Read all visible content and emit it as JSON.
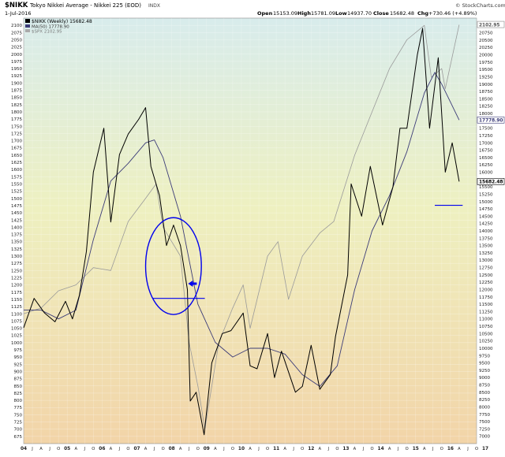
{
  "header": {
    "ticker": "$NIKK",
    "name": "Tokyo Nikkei Average - Nikkei 225 (EOD)",
    "exchange": "INDX",
    "date": "1-Jul-2016",
    "open_label": "Open",
    "open_value": "15153.09",
    "high_label": "High",
    "high_value": "15781.09",
    "low_label": "Low",
    "low_value": "14937.70",
    "close_label": "Close",
    "close_value": "15682.48",
    "chg_label": "Chg",
    "chg_value": "+730.46 (+4.89%)",
    "brand": "© StockCharts.com"
  },
  "legend": {
    "main": "$NIKK (Weekly) 15682.48",
    "ma": "MA(50) 17778.90",
    "spx": "$SPX 2102.95"
  },
  "colors": {
    "price": "#000000",
    "ma": "#3c3c78",
    "spx": "#9a9a9a",
    "annotation": "#0000ee",
    "bg_top": "#d8ecec",
    "bg_mid": "#eef0c0",
    "bg_bottom": "#f2d4a8"
  },
  "chart_data": {
    "type": "line",
    "x_tick_labels": [
      "04",
      "J",
      "A",
      "J",
      "O",
      "05",
      "A",
      "J",
      "O",
      "06",
      "A",
      "J",
      "O",
      "07",
      "A",
      "J",
      "O",
      "08",
      "A",
      "J",
      "O",
      "09",
      "A",
      "J",
      "O",
      "10",
      "A",
      "J",
      "O",
      "11",
      "A",
      "J",
      "O",
      "12",
      "A",
      "J",
      "O",
      "13",
      "A",
      "J",
      "O",
      "14",
      "A",
      "J",
      "O",
      "15",
      "A",
      "J",
      "O",
      "16",
      "A",
      "J",
      "O",
      "17"
    ],
    "left_axis": {
      "min": 650,
      "max": 2125,
      "ticks": [
        675,
        700,
        725,
        750,
        775,
        800,
        825,
        850,
        875,
        900,
        925,
        950,
        975,
        1000,
        1025,
        1050,
        1075,
        1100,
        1125,
        1150,
        1175,
        1200,
        1225,
        1250,
        1275,
        1300,
        1325,
        1350,
        1375,
        1400,
        1425,
        1450,
        1475,
        1500,
        1525,
        1550,
        1575,
        1600,
        1625,
        1650,
        1675,
        1700,
        1725,
        1750,
        1775,
        1800,
        1825,
        1850,
        1875,
        1900,
        1925,
        1950,
        1975,
        2000,
        2025,
        2050,
        2075,
        2100
      ]
    },
    "right_axis": {
      "min": 6750,
      "max": 21250,
      "ticks": [
        7000,
        7250,
        7500,
        7750,
        8000,
        8250,
        8500,
        8750,
        9000,
        9250,
        9500,
        9750,
        10000,
        10250,
        10500,
        10750,
        11000,
        11250,
        11500,
        11750,
        12000,
        12250,
        12500,
        12750,
        13000,
        13250,
        13500,
        13750,
        14000,
        14250,
        14500,
        14750,
        15000,
        15250,
        15500,
        15750,
        16000,
        16250,
        16500,
        16750,
        17000,
        17250,
        17500,
        17750,
        18000,
        18250,
        18500,
        18750,
        19000,
        19250,
        19500,
        19750,
        20000,
        20250,
        20500,
        20750,
        21000
      ]
    },
    "series": [
      {
        "name": "$NIKK (Weekly)",
        "points": [
          [
            2004.0,
            10700
          ],
          [
            2004.3,
            11700
          ],
          [
            2004.6,
            11200
          ],
          [
            2004.9,
            10900
          ],
          [
            2005.2,
            11600
          ],
          [
            2005.4,
            11000
          ],
          [
            2005.6,
            11800
          ],
          [
            2005.8,
            13300
          ],
          [
            2006.0,
            16000
          ],
          [
            2006.3,
            17500
          ],
          [
            2006.5,
            14300
          ],
          [
            2006.75,
            16600
          ],
          [
            2007.0,
            17300
          ],
          [
            2007.3,
            17800
          ],
          [
            2007.5,
            18200
          ],
          [
            2007.65,
            16200
          ],
          [
            2007.9,
            15200
          ],
          [
            2008.1,
            13500
          ],
          [
            2008.3,
            14200
          ],
          [
            2008.5,
            13500
          ],
          [
            2008.7,
            12000
          ],
          [
            2008.78,
            8200
          ],
          [
            2008.95,
            8500
          ],
          [
            2009.18,
            7050
          ],
          [
            2009.4,
            9500
          ],
          [
            2009.7,
            10500
          ],
          [
            2009.95,
            10600
          ],
          [
            2010.3,
            11200
          ],
          [
            2010.5,
            9400
          ],
          [
            2010.7,
            9300
          ],
          [
            2011.0,
            10500
          ],
          [
            2011.2,
            9000
          ],
          [
            2011.4,
            9900
          ],
          [
            2011.8,
            8500
          ],
          [
            2012.0,
            8700
          ],
          [
            2012.25,
            10100
          ],
          [
            2012.5,
            8600
          ],
          [
            2012.8,
            9100
          ],
          [
            2012.95,
            10400
          ],
          [
            2013.3,
            12500
          ],
          [
            2013.4,
            15600
          ],
          [
            2013.7,
            14500
          ],
          [
            2013.95,
            16200
          ],
          [
            2014.3,
            14200
          ],
          [
            2014.6,
            15500
          ],
          [
            2014.8,
            17500
          ],
          [
            2015.0,
            17500
          ],
          [
            2015.3,
            20000
          ],
          [
            2015.45,
            20900
          ],
          [
            2015.65,
            17500
          ],
          [
            2015.9,
            19900
          ],
          [
            2016.1,
            16000
          ],
          [
            2016.3,
            17000
          ],
          [
            2016.5,
            15682
          ]
        ]
      },
      {
        "name": "MA(50)",
        "points": [
          [
            2004.0,
            11300
          ],
          [
            2004.5,
            11300
          ],
          [
            2005.0,
            11000
          ],
          [
            2005.5,
            11300
          ],
          [
            2006.0,
            13700
          ],
          [
            2006.5,
            15700
          ],
          [
            2007.0,
            16300
          ],
          [
            2007.5,
            17000
          ],
          [
            2007.75,
            17100
          ],
          [
            2008.0,
            16500
          ],
          [
            2008.5,
            14500
          ],
          [
            2009.0,
            11500
          ],
          [
            2009.5,
            10200
          ],
          [
            2010.0,
            9700
          ],
          [
            2010.5,
            10000
          ],
          [
            2011.0,
            10000
          ],
          [
            2011.5,
            9800
          ],
          [
            2012.0,
            9100
          ],
          [
            2012.5,
            8700
          ],
          [
            2013.0,
            9400
          ],
          [
            2013.5,
            12000
          ],
          [
            2014.0,
            14000
          ],
          [
            2014.5,
            15200
          ],
          [
            2015.0,
            16700
          ],
          [
            2015.5,
            18700
          ],
          [
            2015.8,
            19400
          ],
          [
            2016.0,
            19000
          ],
          [
            2016.5,
            17778
          ]
        ]
      },
      {
        "name": "$SPX",
        "points": [
          [
            2004.0,
            1100
          ],
          [
            2004.5,
            1120
          ],
          [
            2005.0,
            1180
          ],
          [
            2005.5,
            1200
          ],
          [
            2006.0,
            1260
          ],
          [
            2006.5,
            1250
          ],
          [
            2007.0,
            1420
          ],
          [
            2007.5,
            1500
          ],
          [
            2007.8,
            1550
          ],
          [
            2008.0,
            1400
          ],
          [
            2008.5,
            1300
          ],
          [
            2008.75,
            1000
          ],
          [
            2009.0,
            850
          ],
          [
            2009.2,
            700
          ],
          [
            2009.6,
            1000
          ],
          [
            2010.0,
            1120
          ],
          [
            2010.3,
            1200
          ],
          [
            2010.5,
            1050
          ],
          [
            2011.0,
            1300
          ],
          [
            2011.3,
            1350
          ],
          [
            2011.6,
            1150
          ],
          [
            2012.0,
            1300
          ],
          [
            2012.5,
            1380
          ],
          [
            2012.9,
            1420
          ],
          [
            2013.5,
            1650
          ],
          [
            2014.0,
            1800
          ],
          [
            2014.5,
            1950
          ],
          [
            2015.0,
            2050
          ],
          [
            2015.5,
            2100
          ],
          [
            2015.7,
            1920
          ],
          [
            2016.0,
            1950
          ],
          [
            2016.1,
            1880
          ],
          [
            2016.5,
            2102
          ]
        ]
      }
    ],
    "annotations": {
      "circle_center": [
        2008.3,
        12800
      ],
      "circle_radius_data": [
        0.8,
        1650
      ],
      "level_low": 11700,
      "arrow_tip": [
        2008.72,
        12200
      ],
      "recent_support": 14870,
      "recent_support_from": 2015.8
    }
  }
}
